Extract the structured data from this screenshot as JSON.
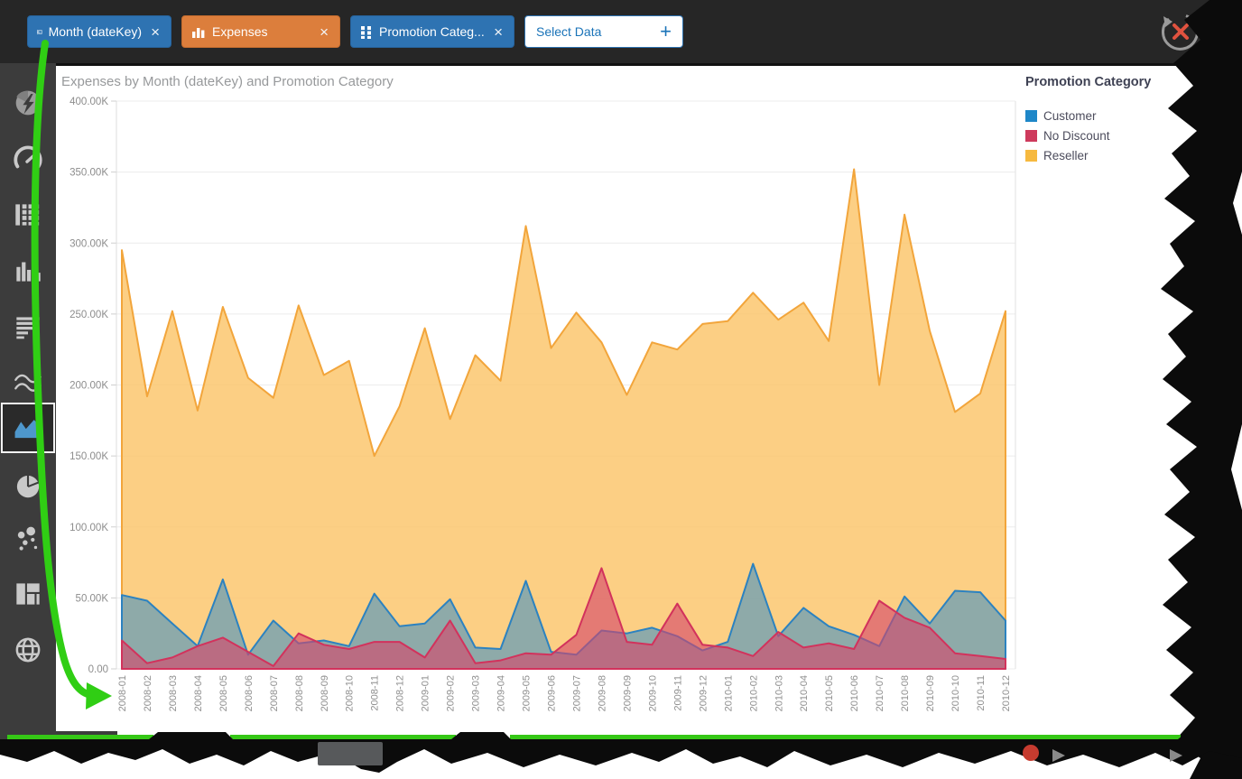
{
  "top_bar": {
    "close_glyph": "×",
    "fields": [
      {
        "label": "Month (dateKey)",
        "type": "date-dimension",
        "color": "#2E73B2"
      },
      {
        "label": "Expenses",
        "type": "measure",
        "color": "#DC7E3C"
      },
      {
        "label": "Promotion Categ...",
        "type": "category-dimension",
        "color": "#2E73B2"
      }
    ],
    "select_data": {
      "label": "Select Data",
      "plus": "+"
    }
  },
  "sidebar": {
    "items": [
      {
        "name": "insights",
        "selected": false
      },
      {
        "name": "gauge",
        "selected": false
      },
      {
        "name": "pivot-grid",
        "selected": false
      },
      {
        "name": "column-chart",
        "selected": false
      },
      {
        "name": "bar-chart",
        "selected": false
      },
      {
        "name": "line-chart",
        "selected": false
      },
      {
        "name": "area-chart",
        "selected": true
      },
      {
        "name": "pie-chart",
        "selected": false
      },
      {
        "name": "scatter-chart",
        "selected": false
      },
      {
        "name": "treemap",
        "selected": false
      },
      {
        "name": "map",
        "selected": false
      }
    ]
  },
  "chart": {
    "title": "Expenses by Month (dateKey) and Promotion Category",
    "y_tick_labels": [
      "400.00K",
      "350.00K",
      "300.00K",
      "250.00K",
      "200.00K",
      "150.00K",
      "100.00K",
      "50.00K",
      "0.00"
    ]
  },
  "legend": {
    "title": "Promotion Category",
    "items": [
      {
        "label": "Customer",
        "color": "#1E87C8"
      },
      {
        "label": "No Discount",
        "color": "#CE3A5C"
      },
      {
        "label": "Reseller",
        "color": "#F6B93F"
      }
    ]
  },
  "chart_data": {
    "type": "area",
    "title": "Expenses by Month (dateKey) and Promotion Category",
    "xlabel": "Month (dateKey)",
    "ylabel": "Expenses",
    "unit": "K",
    "ylim": [
      0,
      400
    ],
    "y_tick_step": 50,
    "grid": "horizontal",
    "legend_position": "right",
    "categories": [
      "2008-01",
      "2008-02",
      "2008-03",
      "2008-04",
      "2008-05",
      "2008-06",
      "2008-07",
      "2008-08",
      "2008-09",
      "2008-10",
      "2008-11",
      "2008-12",
      "2009-01",
      "2009-02",
      "2009-03",
      "2009-04",
      "2009-05",
      "2009-06",
      "2009-07",
      "2009-08",
      "2009-09",
      "2009-10",
      "2009-11",
      "2009-12",
      "2010-01",
      "2010-02",
      "2010-03",
      "2010-04",
      "2010-05",
      "2010-06",
      "2010-07",
      "2010-08",
      "2010-09",
      "2010-10",
      "2010-11",
      "2010-12"
    ],
    "series": [
      {
        "name": "Customer",
        "color": "#1E87C8",
        "stroke": "#2C82C0",
        "fill": "#3E8FC4",
        "fill_opacity": 0.58,
        "values": [
          52,
          48,
          32,
          16,
          63,
          10,
          34,
          18,
          20,
          16,
          53,
          30,
          32,
          49,
          15,
          14,
          62,
          12,
          10,
          27,
          25,
          29,
          23,
          13,
          19,
          74,
          23,
          43,
          30,
          24,
          16,
          51,
          32,
          55,
          54,
          34
        ]
      },
      {
        "name": "No Discount",
        "color": "#CE3A5C",
        "stroke": "#D2325C",
        "fill": "#D5456B",
        "fill_opacity": 0.62,
        "values": [
          20,
          4,
          8,
          16,
          22,
          12,
          2,
          25,
          17,
          14,
          19,
          19,
          8,
          34,
          4,
          6,
          11,
          10,
          24,
          71,
          19,
          17,
          46,
          17,
          15,
          9,
          26,
          15,
          18,
          14,
          48,
          36,
          29,
          11,
          9,
          7
        ]
      },
      {
        "name": "Reseller",
        "color": "#F6B93F",
        "stroke": "#F2A53B",
        "fill": "#FBC469",
        "fill_opacity": 0.82,
        "values": [
          295,
          192,
          252,
          182,
          255,
          205,
          191,
          256,
          207,
          217,
          150,
          185,
          240,
          176,
          221,
          203,
          312,
          226,
          251,
          230,
          193,
          230,
          225,
          243,
          245,
          265,
          246,
          258,
          231,
          352,
          200,
          320,
          238,
          181,
          194,
          252
        ]
      }
    ]
  }
}
